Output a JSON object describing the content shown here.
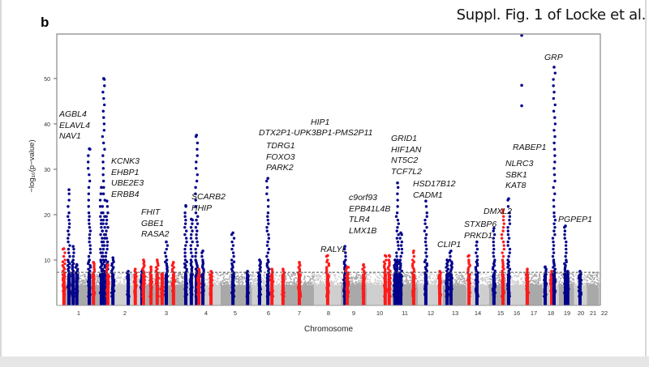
{
  "caption": "Suppl. Fig. 1 of Locke et al.",
  "panel_letter": "b",
  "chart_data": {
    "type": "scatter",
    "subtype": "manhattan",
    "xlabel": "Chromosome",
    "ylabel": "−log₁₀(p−value)",
    "ylim": [
      0,
      60
    ],
    "yticks": [
      10,
      20,
      30,
      40,
      50
    ],
    "xticks": [
      "1",
      "2",
      "3",
      "4",
      "5",
      "6",
      "7",
      "8",
      "9",
      "10",
      "11",
      "12",
      "13",
      "14",
      "15",
      "16",
      "17",
      "18",
      "19",
      "20",
      "21",
      "22"
    ],
    "significance_threshold": 7.3,
    "grid": false,
    "colors": {
      "background_odd": "#a9a9a9",
      "background_even": "#cfcfcf",
      "blue": "#00008b",
      "red": "#ff1a1a",
      "threshold": "#555555"
    },
    "peaks": [
      {
        "x": 0.68,
        "max": 12.5,
        "color": "red"
      },
      {
        "x": 0.79,
        "max": 25.5,
        "color": "blue"
      },
      {
        "x": 0.88,
        "max": 13,
        "color": "blue"
      },
      {
        "x": 0.96,
        "max": 9,
        "color": "blue"
      },
      {
        "x": 1.23,
        "max": 34.5,
        "color": "blue"
      },
      {
        "x": 1.32,
        "max": 9.5,
        "color": "red"
      },
      {
        "x": 1.49,
        "max": 26,
        "color": "blue"
      },
      {
        "x": 1.54,
        "max": 50,
        "color": "blue"
      },
      {
        "x": 1.61,
        "max": 23,
        "color": "blue"
      },
      {
        "x": 1.63,
        "max": 9,
        "color": "red"
      },
      {
        "x": 1.74,
        "max": 10.5,
        "color": "blue"
      },
      {
        "x": 2.08,
        "max": 7.5,
        "color": "blue"
      },
      {
        "x": 2.25,
        "max": 8,
        "color": "red"
      },
      {
        "x": 2.41,
        "max": 7.5,
        "color": "blue"
      },
      {
        "x": 2.45,
        "max": 10,
        "color": "red"
      },
      {
        "x": 2.63,
        "max": 8.5,
        "color": "red"
      },
      {
        "x": 2.78,
        "max": 10,
        "color": "red"
      },
      {
        "x": 2.9,
        "max": 7,
        "color": "red"
      },
      {
        "x": 3.0,
        "max": 14,
        "color": "blue"
      },
      {
        "x": 3.18,
        "max": 9.5,
        "color": "red"
      },
      {
        "x": 3.49,
        "max": 22,
        "color": "blue"
      },
      {
        "x": 3.63,
        "max": 19,
        "color": "blue"
      },
      {
        "x": 3.76,
        "max": 37.5,
        "color": "blue"
      },
      {
        "x": 3.82,
        "max": 8,
        "color": "red"
      },
      {
        "x": 3.92,
        "max": 12,
        "color": "blue"
      },
      {
        "x": 4.17,
        "max": 7.5,
        "color": "red"
      },
      {
        "x": 4.92,
        "max": 16,
        "color": "blue"
      },
      {
        "x": 5.37,
        "max": 7.5,
        "color": "blue"
      },
      {
        "x": 5.73,
        "max": 10,
        "color": "blue"
      },
      {
        "x": 5.98,
        "max": 28,
        "color": "blue"
      },
      {
        "x": 6.11,
        "max": 8,
        "color": "red"
      },
      {
        "x": 6.47,
        "max": 8,
        "color": "red"
      },
      {
        "x": 7.0,
        "max": 9.5,
        "color": "red"
      },
      {
        "x": 7.97,
        "max": 11,
        "color": "red"
      },
      {
        "x": 8.65,
        "max": 13,
        "color": "blue"
      },
      {
        "x": 8.74,
        "max": 8.5,
        "color": "red"
      },
      {
        "x": 9.38,
        "max": 9,
        "color": "red"
      },
      {
        "x": 10.22,
        "max": 11,
        "color": "red"
      },
      {
        "x": 10.38,
        "max": 11,
        "color": "red"
      },
      {
        "x": 10.61,
        "max": 10,
        "color": "blue"
      },
      {
        "x": 10.71,
        "max": 27,
        "color": "blue"
      },
      {
        "x": 10.84,
        "max": 16,
        "color": "blue"
      },
      {
        "x": 11.34,
        "max": 12,
        "color": "red"
      },
      {
        "x": 11.81,
        "max": 23,
        "color": "blue"
      },
      {
        "x": 12.37,
        "max": 7.5,
        "color": "red"
      },
      {
        "x": 12.67,
        "max": 10,
        "color": "blue"
      },
      {
        "x": 12.83,
        "max": 12,
        "color": "blue"
      },
      {
        "x": 13.61,
        "max": 11,
        "color": "red"
      },
      {
        "x": 13.96,
        "max": 14,
        "color": "blue"
      },
      {
        "x": 14.71,
        "max": 17,
        "color": "blue"
      },
      {
        "x": 15.15,
        "max": 21,
        "color": "red"
      },
      {
        "x": 15.5,
        "max": 23.5,
        "color": "blue"
      },
      {
        "x": 16.62,
        "max": 8,
        "color": "red"
      },
      {
        "x": 17.67,
        "max": 8.5,
        "color": "blue"
      },
      {
        "x": 18.05,
        "max": 7.5,
        "color": "red"
      },
      {
        "x": 18.2,
        "max": 52.5,
        "color": "blue"
      },
      {
        "x": 18.9,
        "max": 17.5,
        "color": "blue"
      },
      {
        "x": 19.05,
        "max": 7.5,
        "color": "blue"
      },
      {
        "x": 19.94,
        "max": 7.5,
        "color": "blue"
      }
    ],
    "isolated_points": [
      {
        "x": 16.29,
        "y": 59.5,
        "color": "blue"
      },
      {
        "x": 16.29,
        "y": 48.5,
        "color": "blue"
      },
      {
        "x": 16.29,
        "y": 44,
        "color": "blue"
      }
    ],
    "gene_labels": [
      [
        "AGBL4",
        "ELAVL4",
        "NAV1"
      ],
      [
        "KCNK3",
        "EHBP1",
        "UBE2E3",
        "ERBB4"
      ],
      [
        "FHIT",
        "GBE1",
        "RASA2"
      ],
      [
        "SCARB2",
        "HHIP"
      ],
      [
        "HIP1"
      ],
      [
        "DTX2P1-UPK3BP1-PMS2P11"
      ],
      [
        "TDRG1",
        "FOXO3",
        "PARK2"
      ],
      [
        "RALYL"
      ],
      [
        "c9orf93",
        "EPB41L4B",
        "TLR4",
        "LMX1B"
      ],
      [
        "GRID1",
        "HIF1AN",
        "NT5C2",
        "TCF7L2"
      ],
      [
        "HSD17B12",
        "CADM1"
      ],
      [
        "CLIP1"
      ],
      [
        "STXBP6",
        "PRKD1"
      ],
      [
        "DMXL2"
      ],
      [
        "RABEP1"
      ],
      [
        "NLRC3",
        "SBK1",
        "KAT8"
      ],
      [
        "GRP"
      ],
      [
        "PGPEP1"
      ]
    ]
  }
}
